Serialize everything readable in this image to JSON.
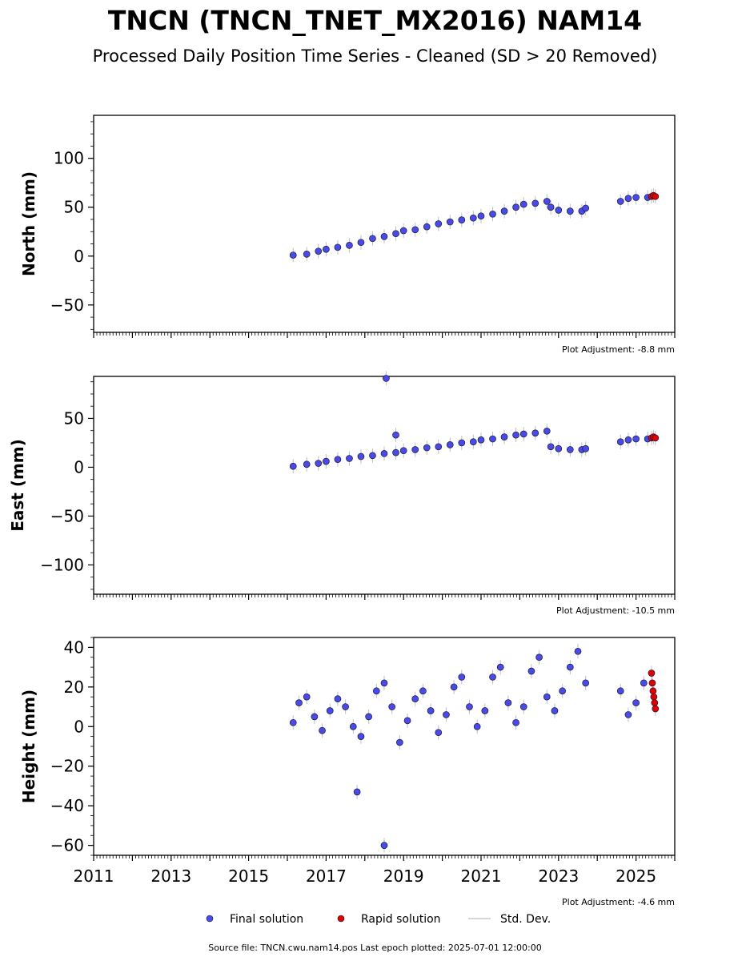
{
  "title": "TNCN (TNCN_TNET_MX2016) NAM14",
  "subtitle": "Processed Daily Position Time Series - Cleaned (SD > 20 Removed)",
  "source_line": "Source file: TNCN.cwu.nam14.pos  Last epoch plotted: 2025-07-01 12:00:00",
  "legend": [
    {
      "label": "Final solution",
      "kind": "dot",
      "color": "#4a4ae8"
    },
    {
      "label": "Rapid solution",
      "kind": "dot",
      "color": "#e00000"
    },
    {
      "label": "Std. Dev.",
      "kind": "line",
      "color": "#c8c8c8"
    }
  ],
  "colors": {
    "final": "#4a4ae8",
    "rapid": "#e00000",
    "stddev": "#808080",
    "edge": "#1a1a3a"
  },
  "chart_data": [
    {
      "type": "scatter",
      "ylabel": "North (mm)",
      "adjustment": "Plot Adjustment: -8.8 mm",
      "xlim": [
        2011.0,
        2026.0
      ],
      "ylim": [
        -78,
        144
      ],
      "yticks": [
        -50,
        0,
        50,
        100
      ],
      "xticks": [],
      "series": [
        {
          "role": "final",
          "x": [
            2016.15,
            2016.5,
            2016.8,
            2017.0,
            2017.3,
            2017.6,
            2017.9,
            2018.2,
            2018.5,
            2018.8,
            2019.0,
            2019.3,
            2019.6,
            2019.9,
            2020.2,
            2020.5,
            2020.8,
            2021.0,
            2021.3,
            2021.6,
            2021.9,
            2022.1,
            2022.4,
            2022.7,
            2022.8,
            2023.0,
            2023.3,
            2023.6,
            2023.7,
            2024.6,
            2024.8,
            2025.0,
            2025.3
          ],
          "y": [
            1,
            2,
            5,
            7,
            9,
            11,
            14,
            18,
            20,
            23,
            26,
            27,
            30,
            33,
            35,
            37,
            39,
            41,
            43,
            46,
            50,
            53,
            54,
            56,
            50,
            47,
            46,
            46,
            49,
            56,
            59,
            60,
            60
          ]
        },
        {
          "role": "rapid",
          "x": [
            2025.4,
            2025.45,
            2025.5
          ],
          "y": [
            61,
            62,
            61
          ]
        }
      ]
    },
    {
      "type": "scatter",
      "ylabel": "East (mm)",
      "adjustment": "Plot Adjustment: -10.5 mm",
      "xlim": [
        2011.0,
        2026.0
      ],
      "ylim": [
        -130,
        93
      ],
      "yticks": [
        -100,
        -50,
        0,
        50
      ],
      "xticks": [],
      "series": [
        {
          "role": "final",
          "x": [
            2016.15,
            2016.5,
            2016.8,
            2017.0,
            2017.3,
            2017.6,
            2017.9,
            2018.2,
            2018.5,
            2018.8,
            2019.0,
            2019.3,
            2019.6,
            2019.9,
            2020.2,
            2020.5,
            2020.8,
            2021.0,
            2021.3,
            2021.6,
            2021.9,
            2022.1,
            2022.4,
            2022.7,
            2022.8,
            2023.0,
            2023.3,
            2023.6,
            2023.7,
            2024.6,
            2024.8,
            2025.0,
            2025.3,
            2018.55,
            2018.8
          ],
          "y": [
            1,
            3,
            4,
            6,
            8,
            9,
            11,
            12,
            14,
            15,
            17,
            18,
            20,
            21,
            23,
            25,
            26,
            28,
            29,
            31,
            33,
            34,
            35,
            37,
            21,
            19,
            18,
            18,
            19,
            26,
            28,
            29,
            29,
            91,
            33
          ]
        },
        {
          "role": "rapid",
          "x": [
            2025.4,
            2025.45,
            2025.5
          ],
          "y": [
            30,
            31,
            30
          ]
        }
      ]
    },
    {
      "type": "scatter",
      "ylabel": "Height (mm)",
      "adjustment": "Plot Adjustment: -4.6 mm",
      "xlim": [
        2011.0,
        2026.0
      ],
      "ylim": [
        -65,
        45
      ],
      "yticks": [
        -60,
        -40,
        -20,
        0,
        20,
        40
      ],
      "xticks": [
        2011,
        2013,
        2015,
        2017,
        2019,
        2021,
        2023,
        2025
      ],
      "series": [
        {
          "role": "final",
          "x": [
            2016.15,
            2016.3,
            2016.5,
            2016.7,
            2016.9,
            2017.1,
            2017.3,
            2017.5,
            2017.7,
            2017.9,
            2018.1,
            2018.3,
            2018.5,
            2018.7,
            2018.9,
            2019.1,
            2019.3,
            2019.5,
            2019.7,
            2019.9,
            2020.1,
            2020.3,
            2020.5,
            2020.7,
            2020.9,
            2021.1,
            2021.3,
            2021.5,
            2021.7,
            2021.9,
            2022.1,
            2022.3,
            2022.5,
            2022.7,
            2022.9,
            2023.1,
            2023.3,
            2023.5,
            2023.7,
            2024.6,
            2024.8,
            2025.0,
            2025.2,
            2017.8,
            2018.5
          ],
          "y": [
            2,
            12,
            15,
            5,
            -2,
            8,
            14,
            10,
            0,
            -5,
            5,
            18,
            22,
            10,
            -8,
            3,
            14,
            18,
            8,
            -3,
            6,
            20,
            25,
            10,
            0,
            8,
            25,
            30,
            12,
            2,
            10,
            28,
            35,
            15,
            8,
            18,
            30,
            38,
            22,
            18,
            6,
            12,
            22,
            -33,
            -60
          ]
        },
        {
          "role": "rapid",
          "x": [
            2025.4,
            2025.42,
            2025.44,
            2025.46,
            2025.48,
            2025.5
          ],
          "y": [
            27,
            22,
            18,
            15,
            12,
            9
          ]
        }
      ]
    }
  ]
}
